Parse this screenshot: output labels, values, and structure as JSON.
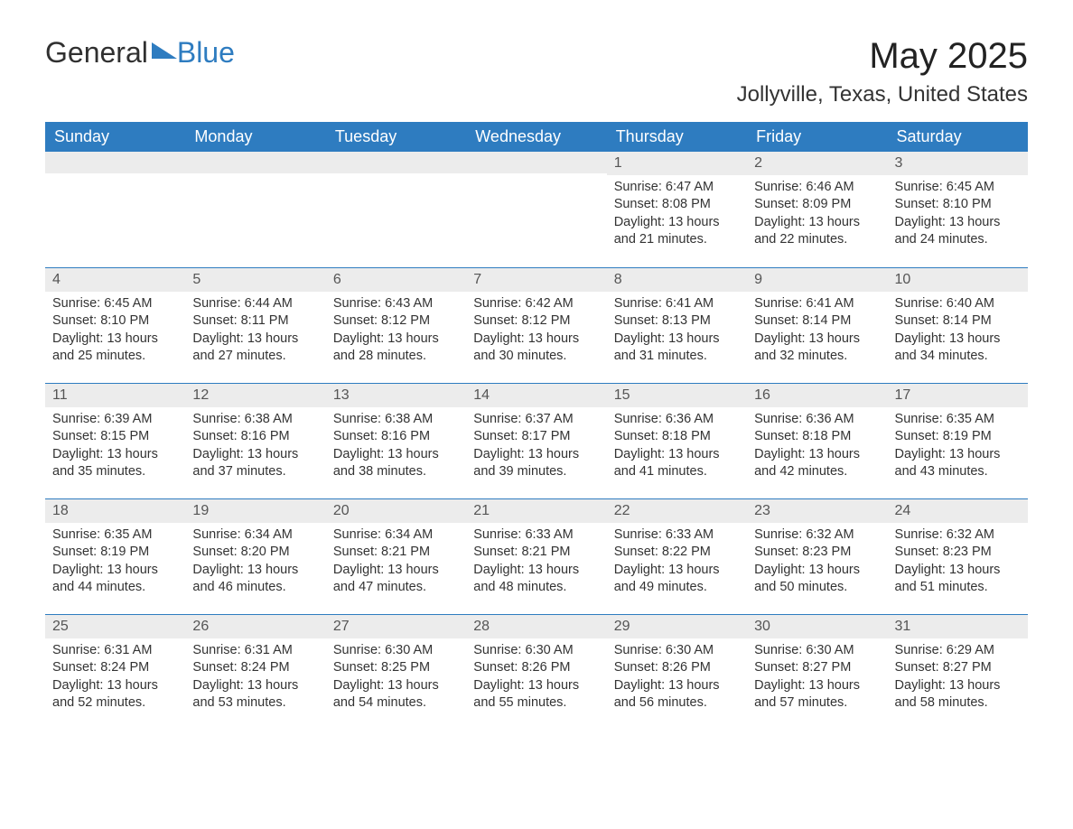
{
  "logo": {
    "general": "General",
    "blue": "Blue"
  },
  "title": "May 2025",
  "location": "Jollyville, Texas, United States",
  "colors": {
    "header_bg": "#2e7cc0",
    "header_text": "#ffffff",
    "strip_bg": "#ececec",
    "divider": "#2e7cc0",
    "body_text": "#333333",
    "background": "#ffffff"
  },
  "weekdays": [
    "Sunday",
    "Monday",
    "Tuesday",
    "Wednesday",
    "Thursday",
    "Friday",
    "Saturday"
  ],
  "weeks": [
    [
      null,
      null,
      null,
      null,
      {
        "n": "1",
        "sunrise": "Sunrise: 6:47 AM",
        "sunset": "Sunset: 8:08 PM",
        "daylight": "Daylight: 13 hours and 21 minutes."
      },
      {
        "n": "2",
        "sunrise": "Sunrise: 6:46 AM",
        "sunset": "Sunset: 8:09 PM",
        "daylight": "Daylight: 13 hours and 22 minutes."
      },
      {
        "n": "3",
        "sunrise": "Sunrise: 6:45 AM",
        "sunset": "Sunset: 8:10 PM",
        "daylight": "Daylight: 13 hours and 24 minutes."
      }
    ],
    [
      {
        "n": "4",
        "sunrise": "Sunrise: 6:45 AM",
        "sunset": "Sunset: 8:10 PM",
        "daylight": "Daylight: 13 hours and 25 minutes."
      },
      {
        "n": "5",
        "sunrise": "Sunrise: 6:44 AM",
        "sunset": "Sunset: 8:11 PM",
        "daylight": "Daylight: 13 hours and 27 minutes."
      },
      {
        "n": "6",
        "sunrise": "Sunrise: 6:43 AM",
        "sunset": "Sunset: 8:12 PM",
        "daylight": "Daylight: 13 hours and 28 minutes."
      },
      {
        "n": "7",
        "sunrise": "Sunrise: 6:42 AM",
        "sunset": "Sunset: 8:12 PM",
        "daylight": "Daylight: 13 hours and 30 minutes."
      },
      {
        "n": "8",
        "sunrise": "Sunrise: 6:41 AM",
        "sunset": "Sunset: 8:13 PM",
        "daylight": "Daylight: 13 hours and 31 minutes."
      },
      {
        "n": "9",
        "sunrise": "Sunrise: 6:41 AM",
        "sunset": "Sunset: 8:14 PM",
        "daylight": "Daylight: 13 hours and 32 minutes."
      },
      {
        "n": "10",
        "sunrise": "Sunrise: 6:40 AM",
        "sunset": "Sunset: 8:14 PM",
        "daylight": "Daylight: 13 hours and 34 minutes."
      }
    ],
    [
      {
        "n": "11",
        "sunrise": "Sunrise: 6:39 AM",
        "sunset": "Sunset: 8:15 PM",
        "daylight": "Daylight: 13 hours and 35 minutes."
      },
      {
        "n": "12",
        "sunrise": "Sunrise: 6:38 AM",
        "sunset": "Sunset: 8:16 PM",
        "daylight": "Daylight: 13 hours and 37 minutes."
      },
      {
        "n": "13",
        "sunrise": "Sunrise: 6:38 AM",
        "sunset": "Sunset: 8:16 PM",
        "daylight": "Daylight: 13 hours and 38 minutes."
      },
      {
        "n": "14",
        "sunrise": "Sunrise: 6:37 AM",
        "sunset": "Sunset: 8:17 PM",
        "daylight": "Daylight: 13 hours and 39 minutes."
      },
      {
        "n": "15",
        "sunrise": "Sunrise: 6:36 AM",
        "sunset": "Sunset: 8:18 PM",
        "daylight": "Daylight: 13 hours and 41 minutes."
      },
      {
        "n": "16",
        "sunrise": "Sunrise: 6:36 AM",
        "sunset": "Sunset: 8:18 PM",
        "daylight": "Daylight: 13 hours and 42 minutes."
      },
      {
        "n": "17",
        "sunrise": "Sunrise: 6:35 AM",
        "sunset": "Sunset: 8:19 PM",
        "daylight": "Daylight: 13 hours and 43 minutes."
      }
    ],
    [
      {
        "n": "18",
        "sunrise": "Sunrise: 6:35 AM",
        "sunset": "Sunset: 8:19 PM",
        "daylight": "Daylight: 13 hours and 44 minutes."
      },
      {
        "n": "19",
        "sunrise": "Sunrise: 6:34 AM",
        "sunset": "Sunset: 8:20 PM",
        "daylight": "Daylight: 13 hours and 46 minutes."
      },
      {
        "n": "20",
        "sunrise": "Sunrise: 6:34 AM",
        "sunset": "Sunset: 8:21 PM",
        "daylight": "Daylight: 13 hours and 47 minutes."
      },
      {
        "n": "21",
        "sunrise": "Sunrise: 6:33 AM",
        "sunset": "Sunset: 8:21 PM",
        "daylight": "Daylight: 13 hours and 48 minutes."
      },
      {
        "n": "22",
        "sunrise": "Sunrise: 6:33 AM",
        "sunset": "Sunset: 8:22 PM",
        "daylight": "Daylight: 13 hours and 49 minutes."
      },
      {
        "n": "23",
        "sunrise": "Sunrise: 6:32 AM",
        "sunset": "Sunset: 8:23 PM",
        "daylight": "Daylight: 13 hours and 50 minutes."
      },
      {
        "n": "24",
        "sunrise": "Sunrise: 6:32 AM",
        "sunset": "Sunset: 8:23 PM",
        "daylight": "Daylight: 13 hours and 51 minutes."
      }
    ],
    [
      {
        "n": "25",
        "sunrise": "Sunrise: 6:31 AM",
        "sunset": "Sunset: 8:24 PM",
        "daylight": "Daylight: 13 hours and 52 minutes."
      },
      {
        "n": "26",
        "sunrise": "Sunrise: 6:31 AM",
        "sunset": "Sunset: 8:24 PM",
        "daylight": "Daylight: 13 hours and 53 minutes."
      },
      {
        "n": "27",
        "sunrise": "Sunrise: 6:30 AM",
        "sunset": "Sunset: 8:25 PM",
        "daylight": "Daylight: 13 hours and 54 minutes."
      },
      {
        "n": "28",
        "sunrise": "Sunrise: 6:30 AM",
        "sunset": "Sunset: 8:26 PM",
        "daylight": "Daylight: 13 hours and 55 minutes."
      },
      {
        "n": "29",
        "sunrise": "Sunrise: 6:30 AM",
        "sunset": "Sunset: 8:26 PM",
        "daylight": "Daylight: 13 hours and 56 minutes."
      },
      {
        "n": "30",
        "sunrise": "Sunrise: 6:30 AM",
        "sunset": "Sunset: 8:27 PM",
        "daylight": "Daylight: 13 hours and 57 minutes."
      },
      {
        "n": "31",
        "sunrise": "Sunrise: 6:29 AM",
        "sunset": "Sunset: 8:27 PM",
        "daylight": "Daylight: 13 hours and 58 minutes."
      }
    ]
  ]
}
